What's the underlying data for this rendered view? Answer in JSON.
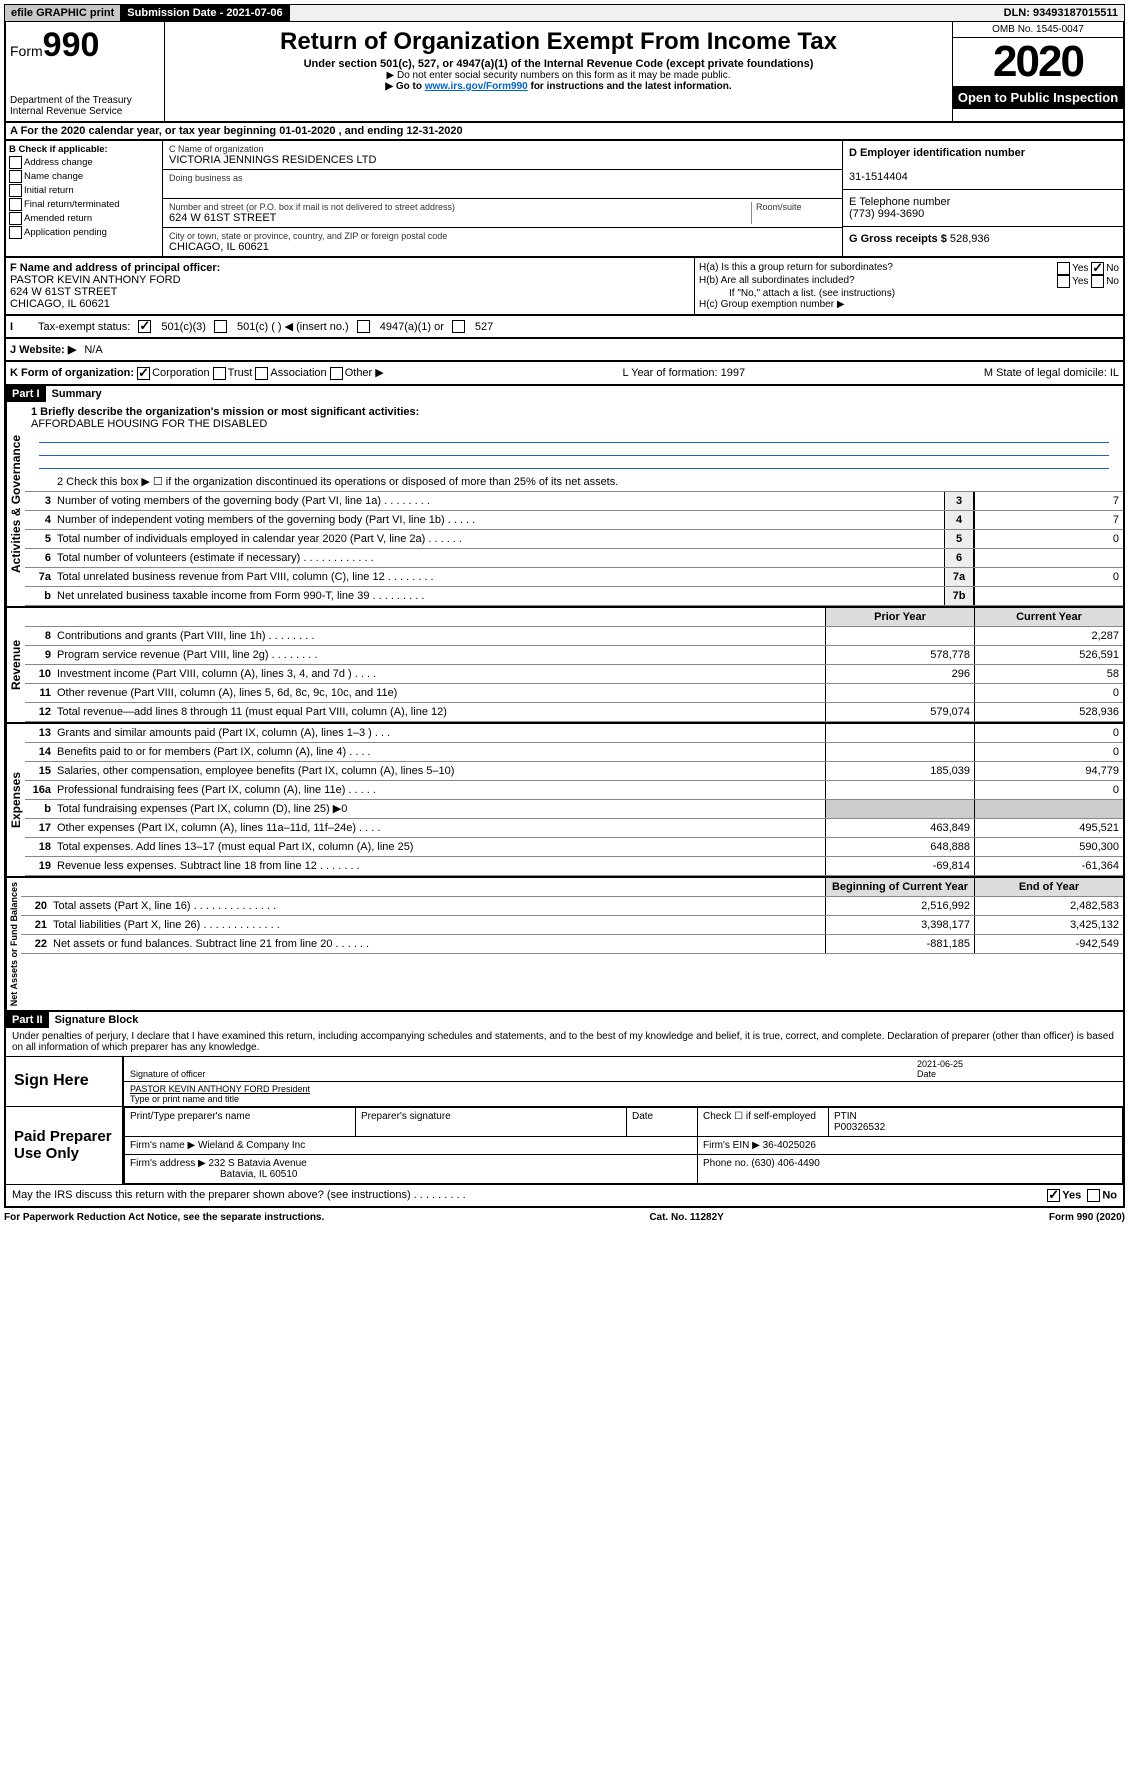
{
  "topbar": {
    "efile": "efile GRAPHIC print",
    "submission_label": "Submission Date - 2021-07-06",
    "dln": "DLN: 93493187015511"
  },
  "header": {
    "form_prefix": "Form",
    "form_number": "990",
    "dept": "Department of the Treasury",
    "irs": "Internal Revenue Service",
    "title": "Return of Organization Exempt From Income Tax",
    "subtitle": "Under section 501(c), 527, or 4947(a)(1) of the Internal Revenue Code (except private foundations)",
    "note1": "▶ Do not enter social security numbers on this form as it may be made public.",
    "note2_pre": "▶ Go to ",
    "note2_link": "www.irs.gov/Form990",
    "note2_post": " for instructions and the latest information.",
    "omb": "OMB No. 1545-0047",
    "year": "2020",
    "open": "Open to Public Inspection"
  },
  "rowA": "A For the 2020 calendar year, or tax year beginning 01-01-2020    , and ending 12-31-2020",
  "boxB": {
    "label": "B Check if applicable:",
    "opts": [
      "Address change",
      "Name change",
      "Initial return",
      "Final return/terminated",
      "Amended return",
      "Application pending"
    ]
  },
  "boxC": {
    "name_label": "C Name of organization",
    "name": "VICTORIA JENNINGS RESIDENCES LTD",
    "dba_label": "Doing business as",
    "addr_label": "Number and street (or P.O. box if mail is not delivered to street address)",
    "room_label": "Room/suite",
    "addr": "624 W 61ST STREET",
    "city_label": "City or town, state or province, country, and ZIP or foreign postal code",
    "city": "CHICAGO, IL  60621"
  },
  "boxD": {
    "label": "D Employer identification number",
    "value": "31-1514404"
  },
  "boxE": {
    "label": "E Telephone number",
    "value": "(773) 994-3690"
  },
  "boxG": {
    "label": "G Gross receipts $",
    "value": "528,936"
  },
  "boxF": {
    "label": "F  Name and address of principal officer:",
    "name": "PASTOR KEVIN ANTHONY FORD",
    "addr": "624 W 61ST STREET",
    "city": "CHICAGO, IL  60621"
  },
  "boxH": {
    "a": "H(a)  Is this a group return for subordinates?",
    "b": "H(b)  Are all subordinates included?",
    "b_note": "If \"No,\" attach a list. (see instructions)",
    "c": "H(c)  Group exemption number ▶",
    "yes": "Yes",
    "no": "No"
  },
  "taxStatus": {
    "label": "Tax-exempt status:",
    "o1": "501(c)(3)",
    "o2": "501(c) (   ) ◀ (insert no.)",
    "o3": "4947(a)(1) or",
    "o4": "527"
  },
  "boxJ": {
    "label": "J Website: ▶",
    "value": "N/A"
  },
  "boxK": {
    "label": "K Form of organization:",
    "opts": [
      "Corporation",
      "Trust",
      "Association",
      "Other ▶"
    ],
    "L": "L Year of formation: 1997",
    "M": "M State of legal domicile: IL"
  },
  "partI": {
    "header": "Part I",
    "title": "Summary",
    "l1_label": "1  Briefly describe the organization's mission or most significant activities:",
    "l1_value": "AFFORDABLE HOUSING FOR THE DISABLED",
    "l2": "2   Check this box ▶ ☐  if the organization discontinued its operations or disposed of more than 25% of its net assets.",
    "rows_top": [
      {
        "n": "3",
        "d": "Number of voting members of the governing body (Part VI, line 1a)  .    .    .    .    .    .    .    .",
        "box": "3",
        "v": "7"
      },
      {
        "n": "4",
        "d": "Number of independent voting members of the governing body (Part VI, line 1b)   .    .    .    .    .",
        "box": "4",
        "v": "7"
      },
      {
        "n": "5",
        "d": "Total number of individuals employed in calendar year 2020 (Part V, line 2a)  .    .    .    .    .    .",
        "box": "5",
        "v": "0"
      },
      {
        "n": "6",
        "d": "Total number of volunteers (estimate if necessary)  .    .    .    .    .    .    .    .    .    .    .    .",
        "box": "6",
        "v": ""
      },
      {
        "n": "7a",
        "d": "Total unrelated business revenue from Part VIII, column (C), line 12  .    .    .    .    .    .    .    .",
        "box": "7a",
        "v": "0"
      },
      {
        "n": "b",
        "d": "Net unrelated business taxable income from Form 990-T, line 39   .    .    .    .    .    .    .    .    .",
        "box": "7b",
        "v": ""
      }
    ],
    "py_label": "Prior Year",
    "cy_label": "Current Year",
    "rows_rev": [
      {
        "n": "8",
        "d": "Contributions and grants (Part VIII, line 1h)  .    .    .    .    .    .    .    .",
        "py": "",
        "cy": "2,287"
      },
      {
        "n": "9",
        "d": "Program service revenue (Part VIII, line 2g)   .    .    .    .    .    .    .    .",
        "py": "578,778",
        "cy": "526,591"
      },
      {
        "n": "10",
        "d": "Investment income (Part VIII, column (A), lines 3, 4, and 7d )   .    .    .    .",
        "py": "296",
        "cy": "58"
      },
      {
        "n": "11",
        "d": "Other revenue (Part VIII, column (A), lines 5, 6d, 8c, 9c, 10c, and 11e)",
        "py": "",
        "cy": "0"
      },
      {
        "n": "12",
        "d": "Total revenue—add lines 8 through 11 (must equal Part VIII, column (A), line 12)",
        "py": "579,074",
        "cy": "528,936"
      }
    ],
    "rows_exp": [
      {
        "n": "13",
        "d": "Grants and similar amounts paid (Part IX, column (A), lines 1–3 )  .    .    .",
        "py": "",
        "cy": "0"
      },
      {
        "n": "14",
        "d": "Benefits paid to or for members (Part IX, column (A), line 4)  .    .    .    .",
        "py": "",
        "cy": "0"
      },
      {
        "n": "15",
        "d": "Salaries, other compensation, employee benefits (Part IX, column (A), lines 5–10)",
        "py": "185,039",
        "cy": "94,779"
      },
      {
        "n": "16a",
        "d": "Professional fundraising fees (Part IX, column (A), line 11e)  .    .    .    .    .",
        "py": "",
        "cy": "0"
      },
      {
        "n": "b",
        "d": "Total fundraising expenses (Part IX, column (D), line 25) ▶0",
        "py": "gray",
        "cy": "gray"
      },
      {
        "n": "17",
        "d": "Other expenses (Part IX, column (A), lines 11a–11d, 11f–24e)  .    .    .    .",
        "py": "463,849",
        "cy": "495,521"
      },
      {
        "n": "18",
        "d": "Total expenses. Add lines 13–17 (must equal Part IX, column (A), line 25)",
        "py": "648,888",
        "cy": "590,300"
      },
      {
        "n": "19",
        "d": "Revenue less expenses. Subtract line 18 from line 12   .    .    .    .    .    .    .",
        "py": "-69,814",
        "cy": "-61,364"
      }
    ],
    "bcy_label": "Beginning of Current Year",
    "eoy_label": "End of Year",
    "rows_net": [
      {
        "n": "20",
        "d": "Total assets (Part X, line 16)  .    .    .    .    .    .    .    .    .    .    .    .    .    .",
        "py": "2,516,992",
        "cy": "2,482,583"
      },
      {
        "n": "21",
        "d": "Total liabilities (Part X, line 26)   .    .    .    .    .    .    .    .    .    .    .    .    .",
        "py": "3,398,177",
        "cy": "3,425,132"
      },
      {
        "n": "22",
        "d": "Net assets or fund balances. Subtract line 21 from line 20   .    .    .    .    .    .",
        "py": "-881,185",
        "cy": "-942,549"
      }
    ],
    "vlabels": {
      "gov": "Activities & Governance",
      "rev": "Revenue",
      "exp": "Expenses",
      "net": "Net Assets or Fund Balances"
    }
  },
  "partII": {
    "header": "Part II",
    "title": "Signature Block",
    "perjury": "Under penalties of perjury, I declare that I have examined this return, including accompanying schedules and statements, and to the best of my knowledge and belief, it is true, correct, and complete. Declaration of preparer (other than officer) is based on all information of which preparer has any knowledge.",
    "sign_here": "Sign Here",
    "sig_officer": "Signature of officer",
    "date": "2021-06-25",
    "date_label": "Date",
    "officer_name": "PASTOR KEVIN ANTHONY FORD  President",
    "type_label": "Type or print name and title",
    "paid": "Paid Preparer Use Only",
    "prep_name_label": "Print/Type preparer's name",
    "prep_sig_label": "Preparer's signature",
    "check_self": "Check ☐ if self-employed",
    "ptin_label": "PTIN",
    "ptin": "P00326532",
    "firm_name_label": "Firm's name     ▶",
    "firm_name": "Wieland & Company Inc",
    "firm_ein_label": "Firm's EIN ▶",
    "firm_ein": "36-4025026",
    "firm_addr_label": "Firm's address ▶",
    "firm_addr1": "232 S Batavia Avenue",
    "firm_addr2": "Batavia, IL  60510",
    "phone_label": "Phone no.",
    "phone": "(630) 406-4490",
    "discuss": "May the IRS discuss this return with the preparer shown above? (see instructions)    .    .    .    .    .    .    .    .    .",
    "yes": "Yes",
    "no": "No"
  },
  "footer": {
    "pra": "For Paperwork Reduction Act Notice, see the separate instructions.",
    "cat": "Cat. No. 11282Y",
    "form": "Form 990 (2020)"
  }
}
